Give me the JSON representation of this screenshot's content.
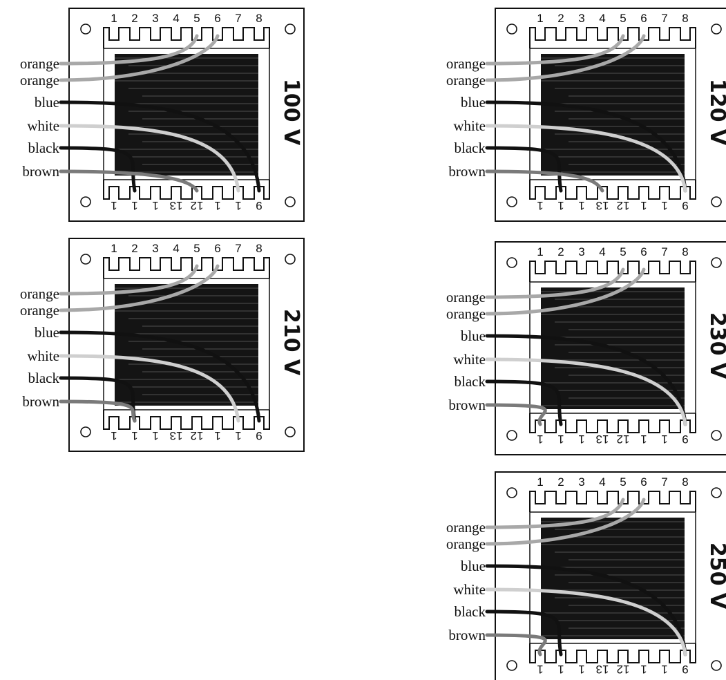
{
  "top_pins": [
    "1",
    "2",
    "3",
    "4",
    "5",
    "6",
    "7",
    "8"
  ],
  "bottom_pins": [
    "1",
    "1",
    "1",
    "13",
    "12",
    "1",
    "1",
    "9"
  ],
  "wire_labels": [
    "orange",
    "orange",
    "blue",
    "white",
    "black",
    "brown"
  ],
  "wire_colors": {
    "orange": "#a8a8a8",
    "blue": "#111111",
    "white": "#cfcfcf",
    "black": "#111111",
    "brown": "#7a7a7a"
  },
  "panels": [
    {
      "voltage": "100 V",
      "connections": {
        "orange_1": "5",
        "orange_2": "6",
        "blue": "8",
        "white": "7",
        "black": "2",
        "brown": "5"
      }
    },
    {
      "voltage": "120 V",
      "connections": {
        "orange_1": "5",
        "orange_2": "6",
        "blue": "8",
        "white": "8",
        "black": "2",
        "brown": "4"
      }
    },
    {
      "voltage": "210 V",
      "connections": {
        "orange_1": "5",
        "orange_2": "6",
        "blue": "8",
        "white": "7",
        "black": "2",
        "brown": "2"
      }
    },
    {
      "voltage": "230 V",
      "connections": {
        "orange_1": "5",
        "orange_2": "6",
        "blue": "8",
        "white": "8",
        "black": "2",
        "brown": "1"
      }
    },
    {
      "voltage": "250 V",
      "connections": {
        "orange_1": "5",
        "orange_2": "6",
        "blue": "8",
        "white": "8",
        "black": "2",
        "brown": "1"
      }
    }
  ]
}
